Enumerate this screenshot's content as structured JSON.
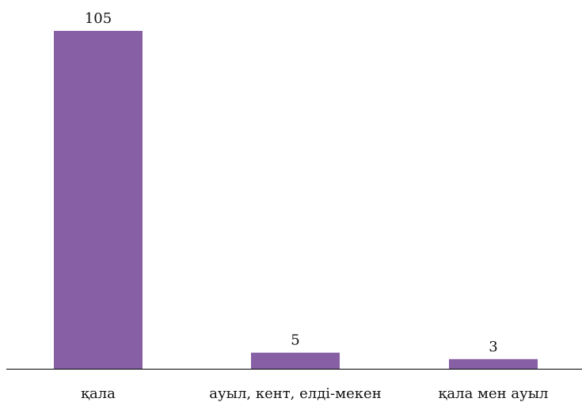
{
  "chart_data": {
    "type": "bar",
    "categories": [
      "қала",
      "ауыл, кент, елді-мекен",
      "қала мен ауыл"
    ],
    "values": [
      105,
      5,
      3
    ],
    "data_labels": [
      "105",
      "5",
      "3"
    ],
    "bar_color": "#875FA5",
    "axis_color": "#000000",
    "ylim": [
      0,
      105
    ],
    "grid": false,
    "legend": "none"
  }
}
